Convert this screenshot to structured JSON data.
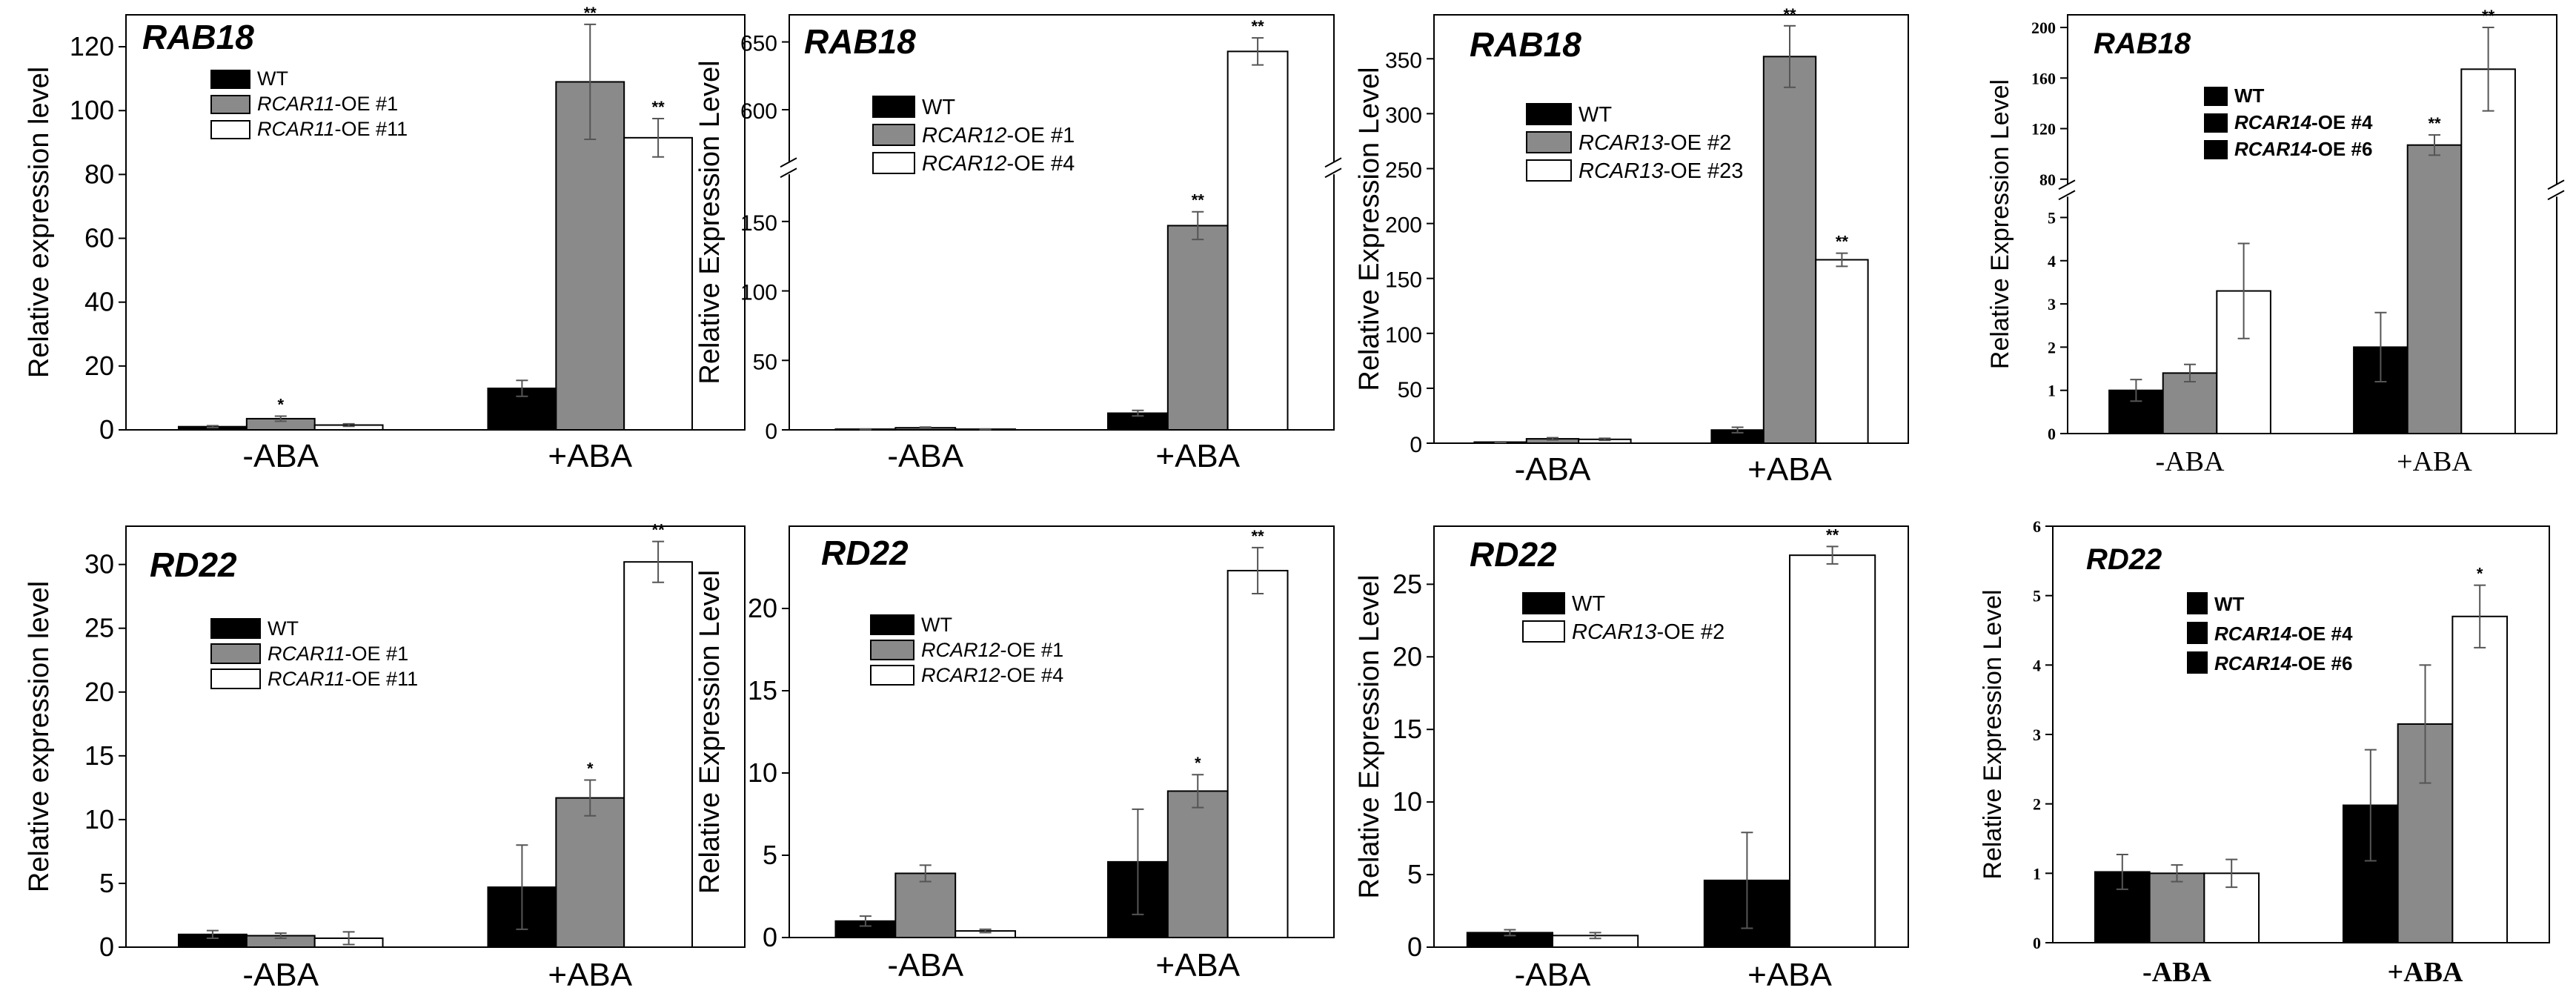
{
  "colors": {
    "WT": "#000000",
    "OE1": "#8a8a8a",
    "OE2": "#ffffff",
    "axis": "#000000"
  },
  "chart_data": [
    {
      "type": "bar",
      "title": "RAB18",
      "ylabel": "Relative expression level",
      "categories": [
        "-ABA",
        "+ABA"
      ],
      "ylim": [
        0,
        130
      ],
      "yticks": [
        "0",
        "20",
        "40",
        "60",
        "80",
        "100",
        "120"
      ],
      "series": [
        {
          "name": "WT",
          "values": [
            1,
            13
          ],
          "errors": [
            0.3,
            2.5
          ],
          "sig": [
            "",
            ""
          ],
          "legend": [
            "WT",
            ""
          ]
        },
        {
          "name": "RCAR11-OE #1",
          "values": [
            3.5,
            109
          ],
          "errors": [
            0.8,
            18
          ],
          "sig": [
            "*",
            "**"
          ],
          "legend": [
            "RCAR11",
            "-OE #1"
          ]
        },
        {
          "name": "RCAR11-OE #11",
          "values": [
            1.5,
            91.5
          ],
          "errors": [
            0.4,
            6
          ],
          "sig": [
            "",
            "**"
          ],
          "legend": [
            "RCAR11",
            "-OE #11"
          ]
        }
      ]
    },
    {
      "type": "bar",
      "title": "RAB18",
      "ylabel": "Relative Expression Level",
      "categories": [
        "-ABA",
        "+ABA"
      ],
      "ylim": [
        0,
        670
      ],
      "axis_break": true,
      "yticks": [
        "0",
        "50",
        "100",
        "150",
        "600",
        "650"
      ],
      "series": [
        {
          "name": "WT",
          "values": [
            0.5,
            12
          ],
          "errors": [
            0.2,
            2
          ],
          "sig": [
            "",
            ""
          ],
          "legend": [
            "WT",
            ""
          ]
        },
        {
          "name": "RCAR12-OE #1",
          "values": [
            1.5,
            147
          ],
          "errors": [
            0.5,
            10
          ],
          "sig": [
            "",
            "**"
          ],
          "legend": [
            "RCAR12",
            "-OE #1"
          ]
        },
        {
          "name": "RCAR12-OE #4",
          "values": [
            0.5,
            643
          ],
          "errors": [
            0.2,
            10
          ],
          "sig": [
            "",
            "**"
          ],
          "legend": [
            "RCAR12",
            "-OE #4"
          ]
        }
      ]
    },
    {
      "type": "bar",
      "title": "RAB18",
      "ylabel": "Relative Expression Level",
      "categories": [
        "-ABA",
        "+ABA"
      ],
      "ylim": [
        0,
        390
      ],
      "yticks": [
        "0",
        "50",
        "100",
        "150",
        "200",
        "250",
        "300",
        "350"
      ],
      "series": [
        {
          "name": "WT",
          "values": [
            1,
            12
          ],
          "errors": [
            0.3,
            2.5
          ],
          "sig": [
            "",
            ""
          ],
          "legend": [
            "WT",
            ""
          ]
        },
        {
          "name": "RCAR13-OE #2",
          "values": [
            4,
            352
          ],
          "errors": [
            1,
            28
          ],
          "sig": [
            "",
            "**"
          ],
          "legend": [
            "RCAR13",
            "-OE #2"
          ]
        },
        {
          "name": "RCAR13-OE #23",
          "values": [
            3.5,
            167
          ],
          "errors": [
            1,
            6
          ],
          "sig": [
            "",
            "**"
          ],
          "legend": [
            "RCAR13",
            "-OE #23"
          ]
        }
      ]
    },
    {
      "type": "bar",
      "title": "RAB18",
      "ylabel": "Relative Expression Level",
      "categories": [
        "-ABA",
        "+ABA"
      ],
      "ylim": [
        0,
        210
      ],
      "axis_break": true,
      "yticks": [
        "0",
        "1",
        "2",
        "3",
        "4",
        "5",
        "80",
        "120",
        "160",
        "200"
      ],
      "series": [
        {
          "name": "WT",
          "values": [
            1,
            2
          ],
          "errors": [
            0.25,
            0.8
          ],
          "sig": [
            "",
            ""
          ],
          "legend": [
            "WT",
            ""
          ]
        },
        {
          "name": "RCAR14-OE #4",
          "values": [
            1.4,
            107
          ],
          "errors": [
            0.2,
            8
          ],
          "sig": [
            "",
            "**"
          ],
          "legend": [
            "RCAR14",
            "-OE #4"
          ]
        },
        {
          "name": "RCAR14-OE #6",
          "values": [
            3.3,
            167
          ],
          "errors": [
            1.1,
            33
          ],
          "sig": [
            "",
            "**"
          ],
          "legend": [
            "RCAR14",
            "-OE #6"
          ]
        }
      ]
    },
    {
      "type": "bar",
      "title": "RD22",
      "ylabel": "Relative expression level",
      "categories": [
        "-ABA",
        "+ABA"
      ],
      "ylim": [
        0,
        33
      ],
      "yticks": [
        "0",
        "5",
        "10",
        "15",
        "20",
        "25",
        "30"
      ],
      "series": [
        {
          "name": "WT",
          "values": [
            1,
            4.7
          ],
          "errors": [
            0.3,
            3.3
          ],
          "sig": [
            "",
            ""
          ],
          "legend": [
            "WT",
            ""
          ]
        },
        {
          "name": "RCAR11-OE #1",
          "values": [
            0.9,
            11.7
          ],
          "errors": [
            0.2,
            1.4
          ],
          "sig": [
            "",
            "*"
          ],
          "legend": [
            "RCAR11",
            "-OE #1"
          ]
        },
        {
          "name": "RCAR11-OE #11",
          "values": [
            0.7,
            30.2
          ],
          "errors": [
            0.5,
            1.6
          ],
          "sig": [
            "",
            "**"
          ],
          "legend": [
            "RCAR11",
            "-OE #11"
          ]
        }
      ]
    },
    {
      "type": "bar",
      "title": "RD22",
      "ylabel": "Relative Expression Level",
      "categories": [
        "-ABA",
        "+ABA"
      ],
      "ylim": [
        0,
        25
      ],
      "yticks": [
        "0",
        "5",
        "10",
        "15",
        "20"
      ],
      "series": [
        {
          "name": "WT",
          "values": [
            1,
            4.6
          ],
          "errors": [
            0.3,
            3.2
          ],
          "sig": [
            "",
            ""
          ],
          "legend": [
            "WT",
            ""
          ]
        },
        {
          "name": "RCAR12-OE #1",
          "values": [
            3.9,
            8.9
          ],
          "errors": [
            0.5,
            1
          ],
          "sig": [
            "",
            "*"
          ],
          "legend": [
            "RCAR12",
            "-OE #1"
          ]
        },
        {
          "name": "RCAR12-OE #4",
          "values": [
            0.4,
            22.3
          ],
          "errors": [
            0.1,
            1.4
          ],
          "sig": [
            "",
            "**"
          ],
          "legend": [
            "RCAR12",
            "-OE #4"
          ]
        }
      ]
    },
    {
      "type": "bar",
      "title": "RD22",
      "ylabel": "Relative Expression Level",
      "categories": [
        "-ABA",
        "+ABA"
      ],
      "ylim": [
        0,
        29
      ],
      "yticks": [
        "0",
        "5",
        "10",
        "15",
        "20",
        "25"
      ],
      "series": [
        {
          "name": "WT",
          "values": [
            1,
            4.6
          ],
          "errors": [
            0.2,
            3.3
          ],
          "sig": [
            "",
            ""
          ],
          "legend": [
            "WT",
            ""
          ]
        },
        {
          "name": "RCAR13-OE #2",
          "values": [
            0.8,
            27
          ],
          "errors": [
            0.2,
            0.6
          ],
          "sig": [
            "",
            "**"
          ],
          "legend": [
            "RCAR13",
            "-OE #2"
          ]
        }
      ]
    },
    {
      "type": "bar",
      "title": "RD22",
      "ylabel": "Relative Expression Level",
      "categories": [
        "-ABA",
        "+ABA"
      ],
      "ylim": [
        0,
        6
      ],
      "yticks": [
        "0",
        "1",
        "2",
        "3",
        "4",
        "5",
        "6"
      ],
      "series": [
        {
          "name": "WT",
          "values": [
            1.02,
            1.98
          ],
          "errors": [
            0.25,
            0.8
          ],
          "sig": [
            "",
            ""
          ],
          "legend": [
            "WT",
            ""
          ]
        },
        {
          "name": "RCAR14-OE #4",
          "values": [
            1,
            3.15
          ],
          "errors": [
            0.12,
            0.85
          ],
          "sig": [
            "",
            ""
          ],
          "legend": [
            "RCAR14",
            "-OE #4"
          ]
        },
        {
          "name": "RCAR14-OE #6",
          "values": [
            1,
            4.7
          ],
          "errors": [
            0.2,
            0.45
          ],
          "sig": [
            "",
            "*"
          ],
          "legend": [
            "RCAR14",
            "-OE #6"
          ]
        }
      ]
    }
  ]
}
